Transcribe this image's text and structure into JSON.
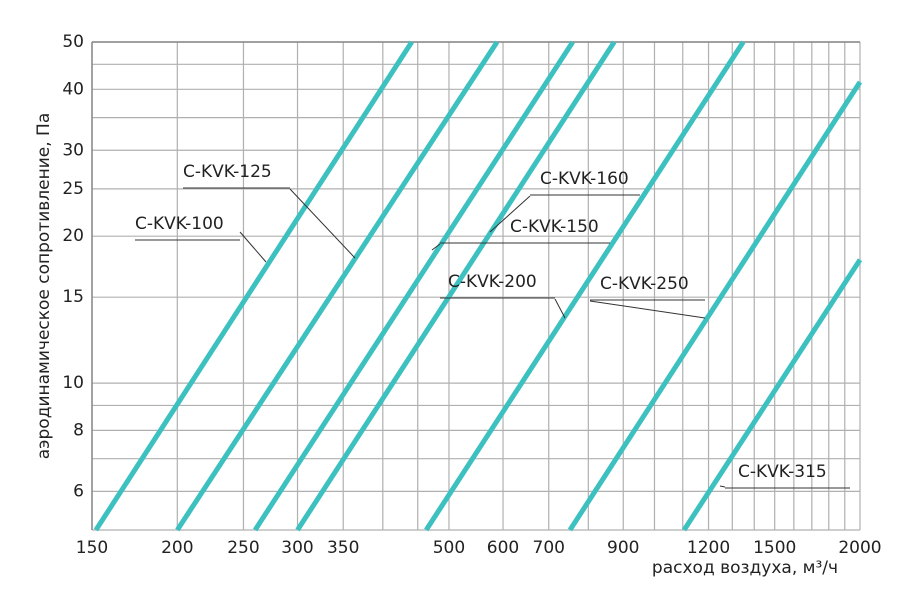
{
  "chart_data": {
    "type": "line",
    "log_x": true,
    "log_y": true,
    "grid": true,
    "x_label": "расход воздуха, м³/ч",
    "y_label": "аэродинамическое сопротивление, Па",
    "xlim": [
      150,
      2000
    ],
    "ylim": [
      5,
      50
    ],
    "xticks": [
      150,
      200,
      250,
      300,
      350,
      500,
      600,
      700,
      900,
      1200,
      1500,
      2000
    ],
    "xminor": [
      400,
      450,
      800,
      1000,
      1100,
      1300,
      1400,
      1600,
      1700,
      1800,
      1900
    ],
    "yticks": [
      6,
      8,
      10,
      15,
      20,
      25,
      30,
      40,
      50
    ],
    "yminor": [
      5,
      7,
      9,
      35,
      45
    ],
    "color": "#3cc0c0",
    "series": [
      {
        "name": "C-KVK-100",
        "x": [
          152,
          441
        ],
        "values": [
          5,
          50
        ]
      },
      {
        "name": "C-KVK-125",
        "x": [
          200,
          588
        ],
        "values": [
          5,
          50
        ]
      },
      {
        "name": "C-KVK-150",
        "x": [
          260,
          759
        ],
        "values": [
          5,
          50
        ]
      },
      {
        "name": "C-KVK-160",
        "x": [
          300,
          873
        ],
        "values": [
          5,
          50
        ]
      },
      {
        "name": "C-KVK-200",
        "x": [
          463,
          1349
        ],
        "values": [
          5,
          50
        ]
      },
      {
        "name": "C-KVK-250",
        "x": [
          752,
          2000
        ],
        "values": [
          5,
          41.4
        ]
      },
      {
        "name": "C-KVK-315",
        "x": [
          1105,
          2000
        ],
        "values": [
          5,
          17.9
        ]
      }
    ]
  }
}
